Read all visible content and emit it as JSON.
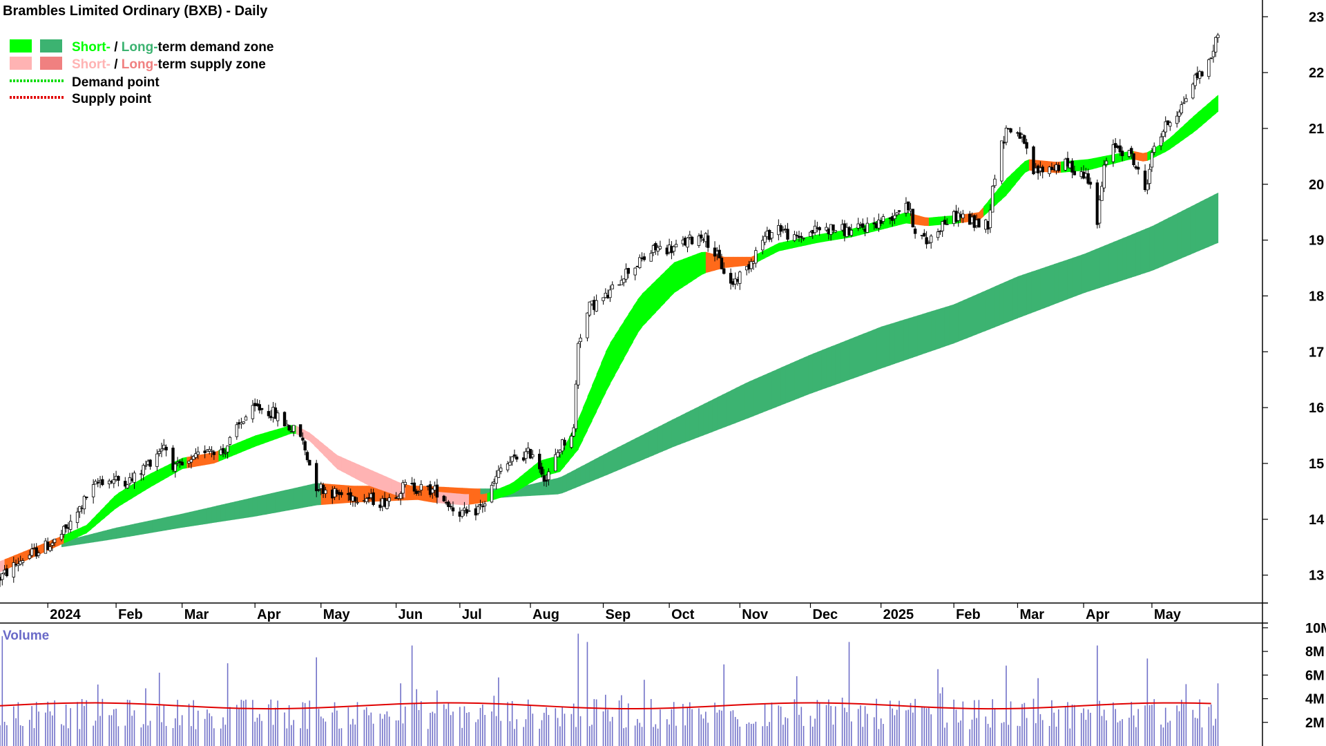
{
  "chart_data": {
    "type": "candlestick",
    "title": "Brambles Limited Ordinary (BXB) - Daily",
    "legend": {
      "placement": "top-left",
      "items": [
        {
          "kind": "zone",
          "colors": [
            "#00ff00",
            "#3cb371"
          ],
          "parts": [
            {
              "text": "Short-",
              "color": "#00ff00"
            },
            {
              "text": " / ",
              "color": "#000000"
            },
            {
              "text": "Long-",
              "color": "#3cb371"
            },
            {
              "text": "term demand zone",
              "color": "#000000"
            }
          ]
        },
        {
          "kind": "zone",
          "colors": [
            "#ffb3b3",
            "#f08080"
          ],
          "parts": [
            {
              "text": "Short-",
              "color": "#ffb3b3"
            },
            {
              "text": " / ",
              "color": "#000000"
            },
            {
              "text": "Long-",
              "color": "#f08080"
            },
            {
              "text": "term supply zone",
              "color": "#000000"
            }
          ]
        },
        {
          "kind": "dotted",
          "color": "#00dd00",
          "parts": [
            {
              "text": "Demand point",
              "color": "#000000"
            }
          ]
        },
        {
          "kind": "dotted",
          "color": "#e00000",
          "parts": [
            {
              "text": "Supply point",
              "color": "#000000"
            }
          ]
        }
      ]
    },
    "colors": {
      "short_demand": "#00ff00",
      "long_demand": "#3cb371",
      "short_supply": "#ffb3b3",
      "long_supply": "#f08080",
      "mixed_zone": "#ff6a1a",
      "volume_bar": "#7070c8",
      "volume_avg": "#e00000",
      "volume_label": "#6a6ac8"
    },
    "x_months": [
      {
        "label": "2024",
        "date": "2024-01-02"
      },
      {
        "label": "Feb",
        "date": "2024-02-01"
      },
      {
        "label": "Mar",
        "date": "2024-03-01"
      },
      {
        "label": "Apr",
        "date": "2024-04-02"
      },
      {
        "label": "May",
        "date": "2024-05-01"
      },
      {
        "label": "Jun",
        "date": "2024-06-03"
      },
      {
        "label": "Jul",
        "date": "2024-07-01"
      },
      {
        "label": "Aug",
        "date": "2024-08-01"
      },
      {
        "label": "Sep",
        "date": "2024-09-02"
      },
      {
        "label": "Oct",
        "date": "2024-10-01"
      },
      {
        "label": "Nov",
        "date": "2024-11-01"
      },
      {
        "label": "Dec",
        "date": "2024-12-02"
      },
      {
        "label": "2025",
        "date": "2025-01-02"
      },
      {
        "label": "Feb",
        "date": "2025-02-03"
      },
      {
        "label": "Mar",
        "date": "2025-03-03"
      },
      {
        "label": "Apr",
        "date": "2025-04-01"
      },
      {
        "label": "May",
        "date": "2025-05-01"
      }
    ],
    "x_range": [
      "2023-12-12",
      "2025-06-04"
    ],
    "price_axis": {
      "ylim": [
        12.5,
        23.3
      ],
      "ticks": [
        13,
        14,
        15,
        16,
        17,
        18,
        19,
        20,
        21,
        22,
        23
      ],
      "side": "right"
    },
    "price_path": [
      [
        "2023-12-12",
        12.95
      ],
      [
        "2023-12-22",
        13.3
      ],
      [
        "2024-01-05",
        13.6
      ],
      [
        "2024-01-12",
        13.9
      ],
      [
        "2024-01-19",
        14.4
      ],
      [
        "2024-01-25",
        14.7
      ],
      [
        "2024-02-08",
        14.7
      ],
      [
        "2024-02-15",
        15.0
      ],
      [
        "2024-02-22",
        15.35
      ],
      [
        "2024-02-27",
        14.9
      ],
      [
        "2024-03-05",
        15.0
      ],
      [
        "2024-03-12",
        15.3
      ],
      [
        "2024-03-19",
        15.2
      ],
      [
        "2024-03-28",
        15.8
      ],
      [
        "2024-04-03",
        16.0
      ],
      [
        "2024-04-10",
        15.9
      ],
      [
        "2024-04-17",
        15.65
      ],
      [
        "2024-04-22",
        15.5
      ],
      [
        "2024-04-29",
        14.6
      ],
      [
        "2024-05-08",
        14.45
      ],
      [
        "2024-05-20",
        14.4
      ],
      [
        "2024-05-28",
        14.3
      ],
      [
        "2024-06-07",
        14.6
      ],
      [
        "2024-06-14",
        14.55
      ],
      [
        "2024-06-21",
        14.5
      ],
      [
        "2024-06-28",
        14.2
      ],
      [
        "2024-07-05",
        14.05
      ],
      [
        "2024-07-12",
        14.3
      ],
      [
        "2024-07-19",
        14.9
      ],
      [
        "2024-07-26",
        15.1
      ],
      [
        "2024-08-02",
        15.2
      ],
      [
        "2024-08-08",
        14.7
      ],
      [
        "2024-08-14",
        15.3
      ],
      [
        "2024-08-20",
        15.6
      ],
      [
        "2024-08-22",
        17.2
      ],
      [
        "2024-08-27",
        17.8
      ],
      [
        "2024-09-04",
        18.0
      ],
      [
        "2024-09-11",
        18.4
      ],
      [
        "2024-09-18",
        18.6
      ],
      [
        "2024-09-25",
        18.85
      ],
      [
        "2024-10-03",
        18.85
      ],
      [
        "2024-10-10",
        19.0
      ],
      [
        "2024-10-16",
        19.1
      ],
      [
        "2024-10-22",
        18.7
      ],
      [
        "2024-10-28",
        18.2
      ],
      [
        "2024-11-04",
        18.5
      ],
      [
        "2024-11-11",
        19.0
      ],
      [
        "2024-11-18",
        19.25
      ],
      [
        "2024-11-25",
        19.0
      ],
      [
        "2024-12-05",
        19.2
      ],
      [
        "2024-12-13",
        19.2
      ],
      [
        "2024-12-20",
        19.15
      ],
      [
        "2025-01-06",
        19.4
      ],
      [
        "2025-01-13",
        19.7
      ],
      [
        "2025-01-17",
        19.2
      ],
      [
        "2025-01-22",
        18.95
      ],
      [
        "2025-01-29",
        19.3
      ],
      [
        "2025-02-05",
        19.45
      ],
      [
        "2025-02-12",
        19.3
      ],
      [
        "2025-02-18",
        19.3
      ],
      [
        "2025-02-21",
        20.2
      ],
      [
        "2025-02-26",
        21.0
      ],
      [
        "2025-03-04",
        20.9
      ],
      [
        "2025-03-10",
        20.2
      ],
      [
        "2025-03-17",
        20.3
      ],
      [
        "2025-03-24",
        20.35
      ],
      [
        "2025-03-31",
        20.2
      ],
      [
        "2025-04-04",
        20.1
      ],
      [
        "2025-04-07",
        19.3
      ],
      [
        "2025-04-10",
        20.3
      ],
      [
        "2025-04-15",
        20.7
      ],
      [
        "2025-04-22",
        20.5
      ],
      [
        "2025-04-28",
        19.9
      ],
      [
        "2025-05-02",
        20.7
      ],
      [
        "2025-05-08",
        21.1
      ],
      [
        "2025-05-14",
        21.4
      ],
      [
        "2025-05-20",
        21.9
      ],
      [
        "2025-05-26",
        22.15
      ],
      [
        "2025-05-30",
        22.7
      ]
    ],
    "short_zone": [
      {
        "date": "2023-12-12",
        "lo": 13.05,
        "hi": 13.25,
        "type": "supply"
      },
      {
        "date": "2024-01-08",
        "lo": 13.55,
        "hi": 13.7,
        "type": "mixed"
      },
      {
        "date": "2024-01-19",
        "lo": 13.75,
        "hi": 13.9,
        "type": "demand"
      },
      {
        "date": "2024-02-01",
        "lo": 14.2,
        "hi": 14.45,
        "type": "demand"
      },
      {
        "date": "2024-02-15",
        "lo": 14.55,
        "hi": 14.8,
        "type": "demand"
      },
      {
        "date": "2024-03-01",
        "lo": 14.9,
        "hi": 15.1,
        "type": "demand"
      },
      {
        "date": "2024-03-15",
        "lo": 15.0,
        "hi": 15.2,
        "type": "mixed"
      },
      {
        "date": "2024-04-02",
        "lo": 15.3,
        "hi": 15.5,
        "type": "demand"
      },
      {
        "date": "2024-04-19",
        "lo": 15.55,
        "hi": 15.7,
        "type": "demand"
      },
      {
        "date": "2024-04-26",
        "lo": 15.4,
        "hi": 15.55,
        "type": "supply"
      },
      {
        "date": "2024-05-08",
        "lo": 14.9,
        "hi": 15.15,
        "type": "supply"
      },
      {
        "date": "2024-05-22",
        "lo": 14.6,
        "hi": 14.9,
        "type": "supply"
      },
      {
        "date": "2024-06-05",
        "lo": 14.4,
        "hi": 14.65,
        "type": "supply"
      },
      {
        "date": "2024-06-19",
        "lo": 14.3,
        "hi": 14.5,
        "type": "mixed"
      },
      {
        "date": "2024-07-03",
        "lo": 14.25,
        "hi": 14.45,
        "type": "supply"
      },
      {
        "date": "2024-07-12",
        "lo": 14.3,
        "hi": 14.45,
        "type": "mixed"
      },
      {
        "date": "2024-07-24",
        "lo": 14.45,
        "hi": 14.65,
        "type": "demand"
      },
      {
        "date": "2024-08-05",
        "lo": 14.75,
        "hi": 15.05,
        "type": "demand"
      },
      {
        "date": "2024-08-14",
        "lo": 14.85,
        "hi": 15.15,
        "type": "demand"
      },
      {
        "date": "2024-08-22",
        "lo": 15.25,
        "hi": 15.8,
        "type": "demand"
      },
      {
        "date": "2024-09-04",
        "lo": 16.35,
        "hi": 17.1,
        "type": "demand"
      },
      {
        "date": "2024-09-18",
        "lo": 17.4,
        "hi": 18.0,
        "type": "demand"
      },
      {
        "date": "2024-10-03",
        "lo": 18.05,
        "hi": 18.6,
        "type": "demand"
      },
      {
        "date": "2024-10-16",
        "lo": 18.4,
        "hi": 18.8,
        "type": "demand"
      },
      {
        "date": "2024-10-25",
        "lo": 18.5,
        "hi": 18.7,
        "type": "mixed"
      },
      {
        "date": "2024-11-06",
        "lo": 18.55,
        "hi": 18.7,
        "type": "mixed"
      },
      {
        "date": "2024-11-18",
        "lo": 18.8,
        "hi": 18.95,
        "type": "demand"
      },
      {
        "date": "2024-12-05",
        "lo": 18.95,
        "hi": 19.1,
        "type": "demand"
      },
      {
        "date": "2024-12-20",
        "lo": 19.05,
        "hi": 19.2,
        "type": "demand"
      },
      {
        "date": "2025-01-13",
        "lo": 19.3,
        "hi": 19.5,
        "type": "demand"
      },
      {
        "date": "2025-01-22",
        "lo": 19.25,
        "hi": 19.4,
        "type": "mixed"
      },
      {
        "date": "2025-02-05",
        "lo": 19.3,
        "hi": 19.45,
        "type": "demand"
      },
      {
        "date": "2025-02-14",
        "lo": 19.35,
        "hi": 19.5,
        "type": "mixed"
      },
      {
        "date": "2025-02-26",
        "lo": 19.8,
        "hi": 20.1,
        "type": "demand"
      },
      {
        "date": "2025-03-07",
        "lo": 20.25,
        "hi": 20.45,
        "type": "demand"
      },
      {
        "date": "2025-03-20",
        "lo": 20.2,
        "hi": 20.4,
        "type": "mixed"
      },
      {
        "date": "2025-04-03",
        "lo": 20.25,
        "hi": 20.45,
        "type": "demand"
      },
      {
        "date": "2025-04-22",
        "lo": 20.45,
        "hi": 20.6,
        "type": "demand"
      },
      {
        "date": "2025-04-28",
        "lo": 20.4,
        "hi": 20.55,
        "type": "mixed"
      },
      {
        "date": "2025-05-08",
        "lo": 20.6,
        "hi": 20.8,
        "type": "demand"
      },
      {
        "date": "2025-05-20",
        "lo": 20.95,
        "hi": 21.25,
        "type": "demand"
      },
      {
        "date": "2025-05-30",
        "lo": 21.3,
        "hi": 21.6,
        "type": "demand"
      }
    ],
    "long_zone": [
      {
        "date": "2024-01-08",
        "lo": 13.5,
        "hi": 13.6,
        "type": "demand"
      },
      {
        "date": "2024-02-01",
        "lo": 13.65,
        "hi": 13.85,
        "type": "demand"
      },
      {
        "date": "2024-03-01",
        "lo": 13.85,
        "hi": 14.1,
        "type": "demand"
      },
      {
        "date": "2024-04-02",
        "lo": 14.05,
        "hi": 14.4,
        "type": "demand"
      },
      {
        "date": "2024-04-29",
        "lo": 14.25,
        "hi": 14.65,
        "type": "demand"
      },
      {
        "date": "2024-05-15",
        "lo": 14.3,
        "hi": 14.6,
        "type": "mixed"
      },
      {
        "date": "2024-06-14",
        "lo": 14.35,
        "hi": 14.6,
        "type": "mixed"
      },
      {
        "date": "2024-07-08",
        "lo": 14.35,
        "hi": 14.55,
        "type": "mixed"
      },
      {
        "date": "2024-07-24",
        "lo": 14.4,
        "hi": 14.55,
        "type": "demand"
      },
      {
        "date": "2024-08-14",
        "lo": 14.45,
        "hi": 14.75,
        "type": "demand"
      },
      {
        "date": "2024-09-04",
        "lo": 14.8,
        "hi": 15.2,
        "type": "demand"
      },
      {
        "date": "2024-10-03",
        "lo": 15.3,
        "hi": 15.8,
        "type": "demand"
      },
      {
        "date": "2024-11-04",
        "lo": 15.8,
        "hi": 16.45,
        "type": "demand"
      },
      {
        "date": "2024-12-02",
        "lo": 16.25,
        "hi": 16.95,
        "type": "demand"
      },
      {
        "date": "2025-01-02",
        "lo": 16.7,
        "hi": 17.45,
        "type": "demand"
      },
      {
        "date": "2025-02-03",
        "lo": 17.15,
        "hi": 17.85,
        "type": "demand"
      },
      {
        "date": "2025-03-03",
        "lo": 17.6,
        "hi": 18.35,
        "type": "demand"
      },
      {
        "date": "2025-04-01",
        "lo": 18.05,
        "hi": 18.75,
        "type": "demand"
      },
      {
        "date": "2025-05-01",
        "lo": 18.45,
        "hi": 19.25,
        "type": "demand"
      },
      {
        "date": "2025-05-30",
        "lo": 18.95,
        "hi": 19.85,
        "type": "demand"
      }
    ],
    "volume_axis": {
      "label": "Volume",
      "ylim": [
        0,
        10.4
      ],
      "ticks": [
        {
          "value": 2,
          "label": "2M"
        },
        {
          "value": 4,
          "label": "4M"
        },
        {
          "value": 6,
          "label": "6M"
        },
        {
          "value": 8,
          "label": "8M"
        },
        {
          "value": 10,
          "label": "10M"
        }
      ],
      "unit_millions": true
    },
    "volume_avg_millions": 3.4,
    "volume_spikes_millions": [
      [
        "2023-12-13",
        9.3
      ],
      [
        "2024-01-24",
        5.2
      ],
      [
        "2024-02-20",
        6.2
      ],
      [
        "2024-03-21",
        7.0
      ],
      [
        "2024-04-29",
        7.5
      ],
      [
        "2024-06-10",
        8.5
      ],
      [
        "2024-07-18",
        5.8
      ],
      [
        "2024-08-22",
        9.5
      ],
      [
        "2024-08-26",
        8.8
      ],
      [
        "2024-09-20",
        5.6
      ],
      [
        "2024-10-25",
        6.9
      ],
      [
        "2024-11-26",
        5.9
      ],
      [
        "2024-12-19",
        8.8
      ],
      [
        "2025-01-27",
        6.5
      ],
      [
        "2025-02-26",
        6.8
      ],
      [
        "2025-04-07",
        8.5
      ],
      [
        "2025-04-29",
        7.4
      ],
      [
        "2025-05-30",
        5.3
      ]
    ]
  }
}
